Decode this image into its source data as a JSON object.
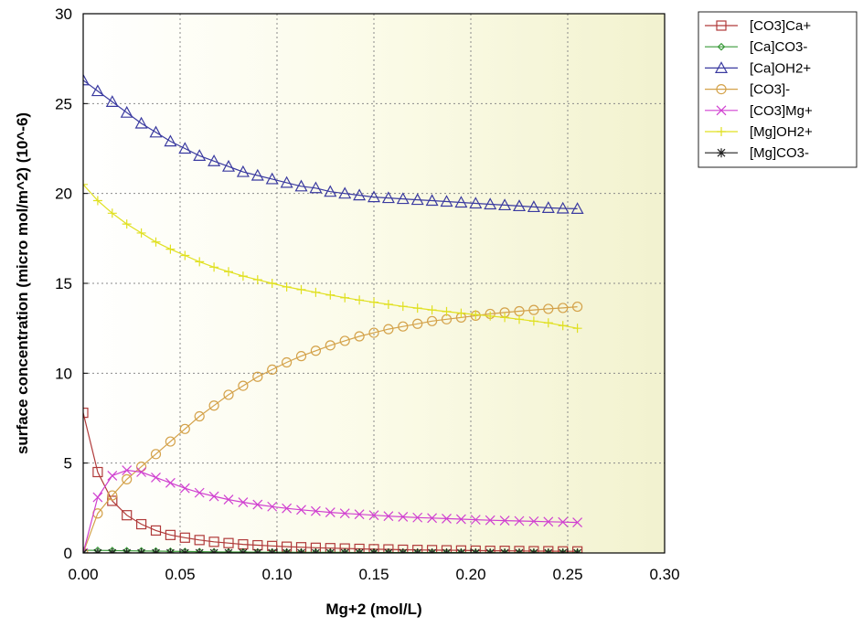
{
  "chart_data": {
    "type": "line",
    "title": "",
    "xlabel": "Mg+2 (mol/L)",
    "ylabel": "surface concentration (micro mol/m^2) (10^-6)",
    "xlim": [
      0,
      0.3
    ],
    "ylim": [
      0,
      30
    ],
    "xticks": [
      "0.00",
      "0.05",
      "0.10",
      "0.15",
      "0.20",
      "0.25",
      "0.30"
    ],
    "yticks": [
      "0",
      "5",
      "10",
      "15",
      "20",
      "25",
      "30"
    ],
    "grid": true,
    "legend_position": "outside-right",
    "x": [
      0.0,
      0.0075,
      0.015,
      0.0225,
      0.03,
      0.0375,
      0.045,
      0.0525,
      0.06,
      0.0675,
      0.075,
      0.0825,
      0.09,
      0.0975,
      0.105,
      0.1125,
      0.12,
      0.1275,
      0.135,
      0.1425,
      0.15,
      0.1575,
      0.165,
      0.1725,
      0.18,
      0.1875,
      0.195,
      0.2025,
      0.21,
      0.2175,
      0.225,
      0.2325,
      0.24,
      0.2475,
      0.255
    ],
    "series": [
      {
        "name": "[CO3]Ca+",
        "color": "#b03a3a",
        "marker": "square",
        "values": [
          7.8,
          4.5,
          2.9,
          2.1,
          1.6,
          1.25,
          1.0,
          0.85,
          0.72,
          0.62,
          0.55,
          0.48,
          0.43,
          0.39,
          0.35,
          0.32,
          0.29,
          0.27,
          0.25,
          0.23,
          0.21,
          0.2,
          0.18,
          0.17,
          0.16,
          0.15,
          0.14,
          0.13,
          0.12,
          0.12,
          0.11,
          0.1,
          0.1,
          0.09,
          0.09
        ]
      },
      {
        "name": "[Ca]CO3-",
        "color": "#3a9a3a",
        "marker": "diamond",
        "values": [
          0.15,
          0.14,
          0.13,
          0.12,
          0.11,
          0.1,
          0.09,
          0.08,
          0.07,
          0.06,
          0.05,
          0.05,
          0.04,
          0.04,
          0.04,
          0.03,
          0.03,
          0.03,
          0.03,
          0.02,
          0.02,
          0.02,
          0.02,
          0.02,
          0.02,
          0.02,
          0.02,
          0.01,
          0.01,
          0.01,
          0.01,
          0.01,
          0.01,
          0.01,
          0.01
        ]
      },
      {
        "name": "[Ca]OH2+",
        "color": "#3a3aa0",
        "marker": "triangle",
        "values": [
          26.3,
          25.7,
          25.1,
          24.5,
          23.9,
          23.4,
          22.9,
          22.5,
          22.1,
          21.8,
          21.5,
          21.2,
          21.0,
          20.8,
          20.6,
          20.4,
          20.3,
          20.1,
          20.0,
          19.9,
          19.8,
          19.75,
          19.7,
          19.65,
          19.6,
          19.55,
          19.5,
          19.45,
          19.4,
          19.35,
          19.3,
          19.25,
          19.2,
          19.17,
          19.15
        ]
      },
      {
        "name": "[CO3]-",
        "color": "#d4a24a",
        "marker": "circle",
        "values": [
          0.0,
          2.2,
          3.2,
          4.1,
          4.8,
          5.5,
          6.2,
          6.9,
          7.6,
          8.2,
          8.8,
          9.3,
          9.8,
          10.2,
          10.6,
          10.95,
          11.25,
          11.55,
          11.8,
          12.05,
          12.25,
          12.45,
          12.6,
          12.75,
          12.9,
          13.0,
          13.1,
          13.2,
          13.3,
          13.38,
          13.45,
          13.52,
          13.58,
          13.63,
          13.7
        ]
      },
      {
        "name": "[CO3]Mg+",
        "color": "#d040d0",
        "marker": "x",
        "values": [
          0.0,
          3.1,
          4.3,
          4.6,
          4.5,
          4.2,
          3.9,
          3.6,
          3.35,
          3.15,
          2.97,
          2.82,
          2.69,
          2.58,
          2.48,
          2.4,
          2.33,
          2.26,
          2.2,
          2.15,
          2.1,
          2.05,
          2.01,
          1.97,
          1.94,
          1.91,
          1.88,
          1.85,
          1.82,
          1.8,
          1.78,
          1.76,
          1.74,
          1.72,
          1.7
        ]
      },
      {
        "name": "[Mg]OH2+",
        "color": "#e0e020",
        "marker": "plus",
        "values": [
          20.5,
          19.6,
          18.9,
          18.3,
          17.8,
          17.3,
          16.9,
          16.55,
          16.2,
          15.9,
          15.65,
          15.4,
          15.2,
          15.0,
          14.8,
          14.65,
          14.5,
          14.35,
          14.2,
          14.07,
          13.95,
          13.83,
          13.72,
          13.62,
          13.52,
          13.43,
          13.34,
          13.26,
          13.18,
          13.1,
          13.0,
          12.9,
          12.8,
          12.65,
          12.5
        ]
      },
      {
        "name": "[Mg]CO3-",
        "color": "#222222",
        "marker": "asterisk",
        "values": [
          0.0,
          0.0,
          0.0,
          0.0,
          0.0,
          0.0,
          0.0,
          0.0,
          0.0,
          0.0,
          0.0,
          0.0,
          0.0,
          0.0,
          0.0,
          0.0,
          0.0,
          0.0,
          0.0,
          0.0,
          0.0,
          0.0,
          0.0,
          0.0,
          0.0,
          0.0,
          0.0,
          0.0,
          0.0,
          0.0,
          0.0,
          0.0,
          0.0,
          0.0,
          0.0
        ]
      }
    ]
  }
}
